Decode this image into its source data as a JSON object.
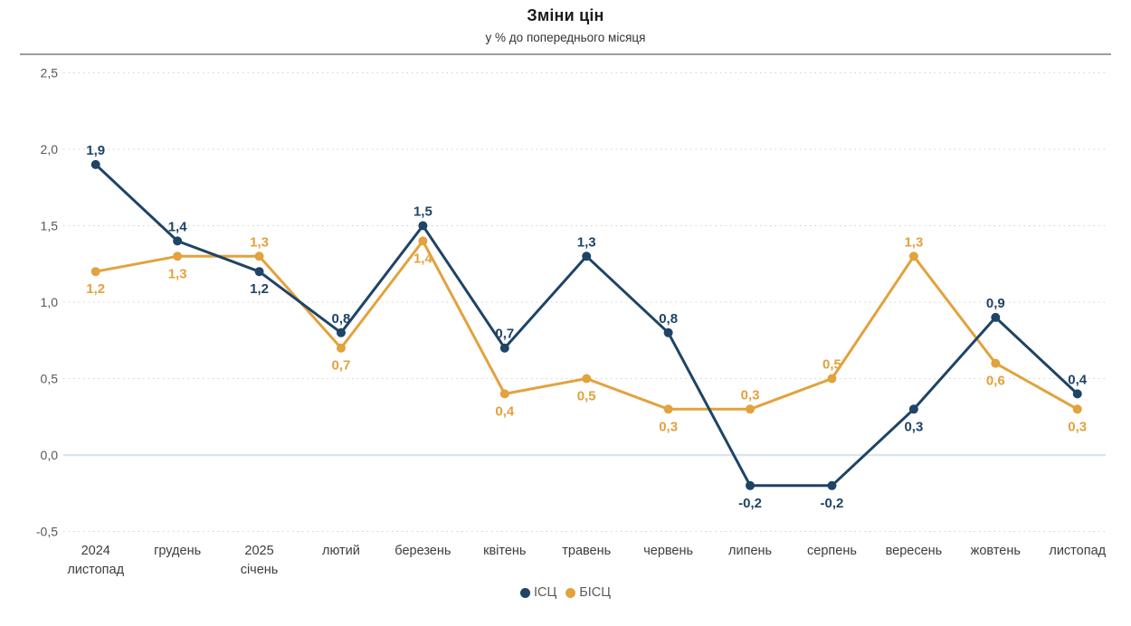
{
  "title": "Зміни цін",
  "subtitle": "у % до попереднього місяця",
  "legend": {
    "position": "bottom-center",
    "items": [
      {
        "label": "ІСЦ",
        "color": "#1E4466"
      },
      {
        "label": "БІСЦ",
        "color": "#E2A23C"
      }
    ]
  },
  "chart_data": {
    "type": "line",
    "title": "Зміни цін",
    "subtitle": "у % до попереднього місяця",
    "categories": [
      [
        "2024",
        "листопад"
      ],
      [
        "грудень"
      ],
      [
        "2025",
        "січень"
      ],
      [
        "лютий"
      ],
      [
        "березень"
      ],
      [
        "квітень"
      ],
      [
        "травень"
      ],
      [
        "червень"
      ],
      [
        "липень"
      ],
      [
        "серпень"
      ],
      [
        "вересень"
      ],
      [
        "жовтень"
      ],
      [
        "листопад"
      ]
    ],
    "series": [
      {
        "name": "ІСЦ",
        "color": "#1E4466",
        "values": [
          1.9,
          1.4,
          1.2,
          0.8,
          1.5,
          0.7,
          1.3,
          0.8,
          -0.2,
          -0.2,
          0.3,
          0.9,
          0.4
        ],
        "label_positions": [
          "above",
          "above",
          "below",
          "above",
          "above",
          "above",
          "above",
          "above",
          "below",
          "below",
          "below",
          "above",
          "above"
        ]
      },
      {
        "name": "БІСЦ",
        "color": "#E2A23C",
        "values": [
          1.2,
          1.3,
          1.3,
          0.7,
          1.4,
          0.4,
          0.5,
          0.3,
          0.3,
          0.5,
          1.3,
          0.6,
          0.3
        ],
        "label_positions": [
          "below",
          "below",
          "above",
          "below",
          "below",
          "below",
          "below",
          "below",
          "above",
          "above",
          "above",
          "below",
          "below"
        ]
      }
    ],
    "ylim": [
      -0.5,
      2.5
    ],
    "yticks": [
      2.5,
      2.0,
      1.5,
      1.0,
      0.5,
      0.0,
      -0.5
    ],
    "grid": "horizontal-dotted",
    "zero_line": true,
    "decimal_separator": ",",
    "data_labels": true,
    "legend_position": "bottom-center"
  },
  "style": {
    "gridline_color": "#d2d2d2",
    "zero_line_color": "#dde4eb",
    "ytick_color": "#595959",
    "xtick_color": "#3d3d3d"
  }
}
